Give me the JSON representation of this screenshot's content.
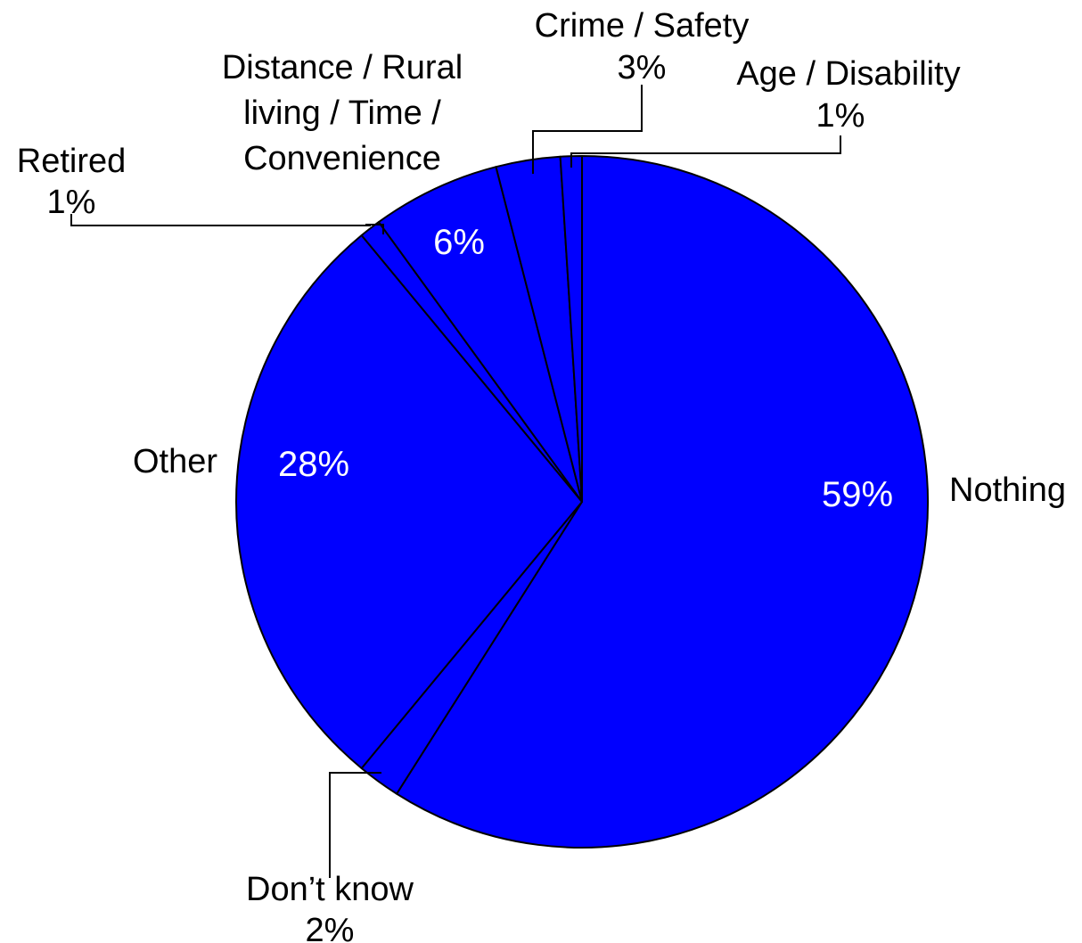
{
  "chart_data": {
    "type": "pie",
    "start_angle_deg": 0,
    "direction": "clockwise",
    "fill_color": "#0000ff",
    "edge_color": "#000000",
    "slices": [
      {
        "label": "Nothing",
        "value": 59,
        "value_label": "59%"
      },
      {
        "label": "Don’t know",
        "value": 2,
        "value_label": "2%"
      },
      {
        "label": "Other",
        "value": 28,
        "value_label": "28%"
      },
      {
        "label": "Retired",
        "value": 1,
        "value_label": "1%"
      },
      {
        "label": "Distance / Rural living / Time / Convenience",
        "label_lines": [
          "Distance / Rural",
          "living / Time /",
          "Convenience"
        ],
        "value": 6,
        "value_label": "6%"
      },
      {
        "label": "Crime / Safety",
        "value": 3,
        "value_label": "3%"
      },
      {
        "label": "Age / Disability",
        "value": 1,
        "value_label": "1%"
      }
    ]
  }
}
